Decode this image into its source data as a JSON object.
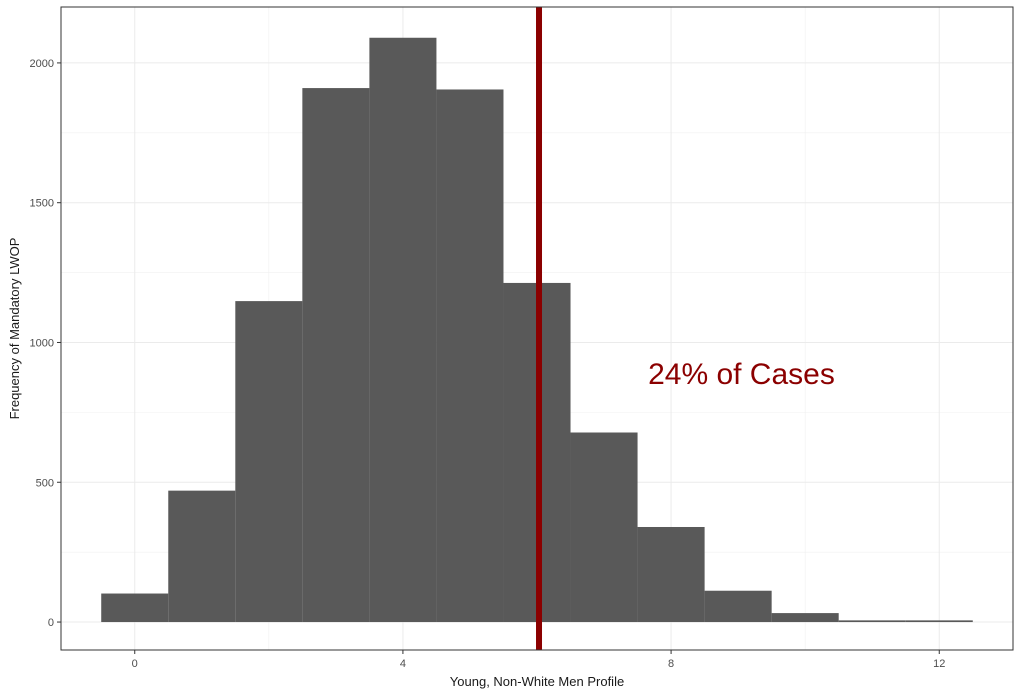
{
  "chart_data": {
    "type": "bar",
    "title": "",
    "xlabel": "Young, Non-White Men Profile",
    "ylabel": "Frequency of Mandatory LWOP",
    "xlim": [
      -1.1,
      13.1
    ],
    "ylim": [
      -100,
      2200
    ],
    "bins": [
      {
        "x_start": -0.5,
        "x_end": 0.5,
        "count": 102
      },
      {
        "x_start": 0.5,
        "x_end": 1.5,
        "count": 470
      },
      {
        "x_start": 1.5,
        "x_end": 2.5,
        "count": 1148
      },
      {
        "x_start": 2.5,
        "x_end": 3.5,
        "count": 1910
      },
      {
        "x_start": 3.5,
        "x_end": 4.5,
        "count": 2090
      },
      {
        "x_start": 4.5,
        "x_end": 5.5,
        "count": 1905
      },
      {
        "x_start": 5.5,
        "x_end": 6.5,
        "count": 1213
      },
      {
        "x_start": 6.5,
        "x_end": 7.5,
        "count": 678
      },
      {
        "x_start": 7.5,
        "x_end": 8.5,
        "count": 340
      },
      {
        "x_start": 8.5,
        "x_end": 9.5,
        "count": 112
      },
      {
        "x_start": 9.5,
        "x_end": 10.5,
        "count": 32
      },
      {
        "x_start": 10.5,
        "x_end": 11.5,
        "count": 6
      },
      {
        "x_start": 11.5,
        "x_end": 12.5,
        "count": 6
      }
    ],
    "x_ticks": [
      {
        "value": 0,
        "label": "0"
      },
      {
        "value": 4,
        "label": "4"
      },
      {
        "value": 8,
        "label": "8"
      },
      {
        "value": 12,
        "label": "12"
      }
    ],
    "y_ticks": [
      {
        "value": 0,
        "label": "0"
      },
      {
        "value": 500,
        "label": "500"
      },
      {
        "value": 1000,
        "label": "1000"
      },
      {
        "value": 1500,
        "label": "1500"
      },
      {
        "value": 2000,
        "label": "2000"
      }
    ],
    "reference_line": {
      "x": 6.03,
      "color": "#8b0000"
    },
    "annotation": {
      "text": "24% of Cases",
      "x": 9.05,
      "y": 890,
      "color": "#8b0000"
    },
    "bar_color": "#595959",
    "grid": true
  }
}
